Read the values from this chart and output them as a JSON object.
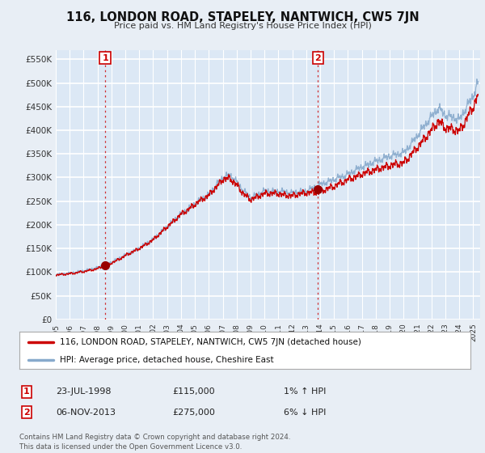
{
  "title": "116, LONDON ROAD, STAPELEY, NANTWICH, CW5 7JN",
  "subtitle": "Price paid vs. HM Land Registry's House Price Index (HPI)",
  "ylabel_ticks": [
    "£0",
    "£50K",
    "£100K",
    "£150K",
    "£200K",
    "£250K",
    "£300K",
    "£350K",
    "£400K",
    "£450K",
    "£500K",
    "£550K"
  ],
  "ytick_values": [
    0,
    50000,
    100000,
    150000,
    200000,
    250000,
    300000,
    350000,
    400000,
    450000,
    500000,
    550000
  ],
  "ylim": [
    0,
    570000
  ],
  "xlim_start": 1995.0,
  "xlim_end": 2025.5,
  "xtick_years": [
    1995,
    1996,
    1997,
    1998,
    1999,
    2000,
    2001,
    2002,
    2003,
    2004,
    2005,
    2006,
    2007,
    2008,
    2009,
    2010,
    2011,
    2012,
    2013,
    2014,
    2015,
    2016,
    2017,
    2018,
    2019,
    2020,
    2021,
    2022,
    2023,
    2024,
    2025
  ],
  "background_color": "#e8eef5",
  "plot_bg_color": "#dce8f5",
  "grid_color": "#ffffff",
  "sale1_x": 1998.55,
  "sale1_y": 115000,
  "sale1_label": "1",
  "sale1_date": "23-JUL-1998",
  "sale1_price": "£115,000",
  "sale1_hpi": "1% ↑ HPI",
  "sale2_x": 2013.85,
  "sale2_y": 275000,
  "sale2_label": "2",
  "sale2_date": "06-NOV-2013",
  "sale2_price": "£275,000",
  "sale2_hpi": "6% ↓ HPI",
  "legend_line1": "116, LONDON ROAD, STAPELEY, NANTWICH, CW5 7JN (detached house)",
  "legend_line2": "HPI: Average price, detached house, Cheshire East",
  "footnote": "Contains HM Land Registry data © Crown copyright and database right 2024.\nThis data is licensed under the Open Government Licence v3.0.",
  "line_color_red": "#cc0000",
  "line_color_blue": "#88aacc",
  "marker_color_red": "#990000",
  "sale_label_color": "#cc0000",
  "dashed_line_color": "#cc0000",
  "legend_bg": "#ffffff",
  "legend_border": "#aaaaaa",
  "outside_bg": "#e8eef5"
}
